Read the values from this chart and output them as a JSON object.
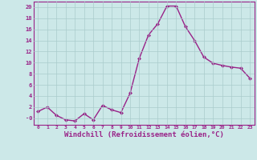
{
  "x": [
    0,
    1,
    2,
    3,
    4,
    5,
    6,
    7,
    8,
    9,
    10,
    11,
    12,
    13,
    14,
    15,
    16,
    17,
    18,
    19,
    20,
    21,
    22,
    23
  ],
  "y": [
    1.2,
    2.0,
    0.5,
    -0.3,
    -0.5,
    0.8,
    -0.3,
    2.3,
    1.5,
    1.0,
    4.5,
    10.8,
    15.0,
    17.0,
    20.2,
    20.2,
    16.5,
    14.0,
    11.0,
    9.9,
    9.5,
    9.2,
    9.0,
    7.2
  ],
  "line_color": "#992288",
  "marker": "D",
  "marker_size": 2.0,
  "linewidth": 1.0,
  "xlabel": "Windchill (Refroidissement éolien,°C)",
  "xlabel_fontsize": 6.5,
  "xtick_labels": [
    "0",
    "1",
    "2",
    "3",
    "4",
    "5",
    "6",
    "7",
    "8",
    "9",
    "10",
    "11",
    "12",
    "13",
    "14",
    "15",
    "16",
    "17",
    "18",
    "19",
    "20",
    "21",
    "22",
    "23"
  ],
  "ytick_values": [
    0,
    2,
    4,
    6,
    8,
    10,
    12,
    14,
    16,
    18,
    20
  ],
  "ytick_labels": [
    "-0",
    "2",
    "4",
    "6",
    "8",
    "10",
    "12",
    "14",
    "16",
    "18",
    "20"
  ],
  "ylim": [
    -1.2,
    21.0
  ],
  "xlim": [
    -0.5,
    23.5
  ],
  "bg_color": "#cce8e8",
  "grid_color": "#aacccc",
  "tick_color": "#992288",
  "label_color": "#992288",
  "spine_color": "#992288"
}
